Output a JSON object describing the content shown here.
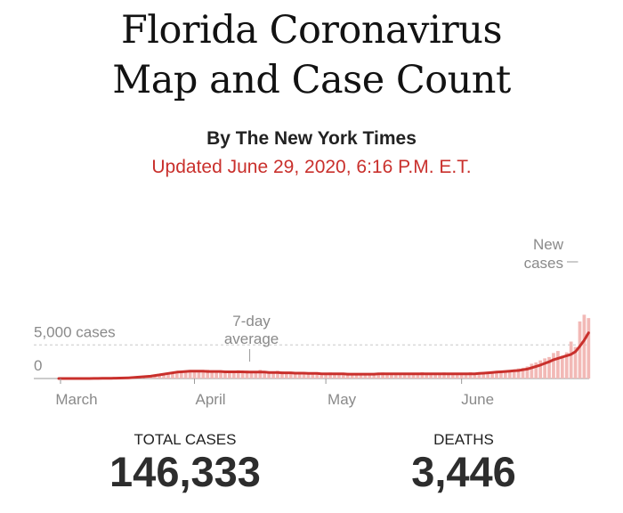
{
  "headline": {
    "line1": "Florida Coronavirus",
    "line2": "Map and Case Count"
  },
  "byline": "By The New York Times",
  "updated": "Updated June 29, 2020, 6:16 P.M. E.T.",
  "colors": {
    "accent": "#c9302c",
    "bar": "#f2b9b6",
    "text": "#121212",
    "muted": "#8a8a8a"
  },
  "stats": {
    "total_cases_label": "TOTAL CASES",
    "total_cases_value": "146,333",
    "deaths_label": "DEATHS",
    "deaths_value": "3,446"
  },
  "chart_data": {
    "type": "bar",
    "title": "New cases",
    "ylabel": "cases",
    "ylim": [
      0,
      10000
    ],
    "gridlines": [
      {
        "value": 0,
        "label": "0"
      },
      {
        "value": 5000,
        "label": "5,000 cases"
      }
    ],
    "x_labels": [
      {
        "day": 0,
        "label": "March"
      },
      {
        "day": 31,
        "label": "April"
      },
      {
        "day": 61,
        "label": "May"
      },
      {
        "day": 92,
        "label": "June"
      }
    ],
    "annotations": {
      "average": {
        "line1": "7-day",
        "line2": "average",
        "day": 43
      },
      "new_cases": {
        "line1": "New",
        "line2": "cases",
        "day": 119
      }
    },
    "series": [
      {
        "name": "New cases",
        "start_day": 0,
        "values": [
          0,
          2,
          3,
          2,
          5,
          5,
          5,
          8,
          10,
          15,
          20,
          25,
          35,
          60,
          80,
          100,
          120,
          150,
          180,
          250,
          300,
          350,
          400,
          450,
          500,
          600,
          700,
          800,
          900,
          950,
          1000,
          1050,
          1100,
          1150,
          1300,
          1200,
          1150,
          1000,
          1200,
          1100,
          1050,
          1250,
          1150,
          1200,
          1000,
          900,
          1300,
          1100,
          1000,
          800,
          1150,
          1050,
          900,
          850,
          950,
          1000,
          600,
          700,
          800,
          750,
          500,
          600,
          900,
          750,
          700,
          650,
          850,
          700,
          600,
          500,
          750,
          650,
          800,
          750,
          900,
          750,
          700,
          850,
          800,
          750,
          650,
          550,
          700,
          950,
          850,
          750,
          800,
          650,
          900,
          850,
          800,
          650,
          700,
          800,
          950,
          850,
          900,
          700,
          750,
          800,
          950,
          1000,
          1050,
          1100,
          1250,
          1500,
          1600,
          1800,
          2200,
          2400,
          2700,
          3000,
          3200,
          3800,
          4100,
          3400,
          3900,
          5500,
          4700,
          8500,
          9500,
          9000
        ]
      },
      {
        "name": "7-day average",
        "start_day": 0,
        "values": [
          0,
          0,
          0,
          0,
          0,
          0,
          0,
          0,
          10,
          10,
          20,
          30,
          40,
          50,
          60,
          80,
          100,
          150,
          200,
          250,
          300,
          350,
          450,
          550,
          650,
          750,
          850,
          950,
          1000,
          1050,
          1100,
          1100,
          1100,
          1100,
          1050,
          1050,
          1050,
          1050,
          1000,
          1000,
          1000,
          1000,
          1000,
          950,
          950,
          950,
          950,
          950,
          900,
          900,
          900,
          850,
          850,
          850,
          800,
          800,
          800,
          750,
          750,
          750,
          700,
          700,
          700,
          700,
          700,
          700,
          650,
          650,
          650,
          650,
          650,
          650,
          650,
          700,
          700,
          700,
          700,
          700,
          700,
          700,
          700,
          700,
          700,
          700,
          700,
          700,
          700,
          700,
          700,
          700,
          700,
          700,
          700,
          700,
          700,
          700,
          750,
          800,
          850,
          900,
          950,
          1000,
          1050,
          1100,
          1150,
          1200,
          1300,
          1400,
          1600,
          1800,
          2000,
          2250,
          2500,
          2800,
          3000,
          3200,
          3400,
          3600,
          4000,
          4800,
          5700,
          6800
        ]
      }
    ]
  }
}
